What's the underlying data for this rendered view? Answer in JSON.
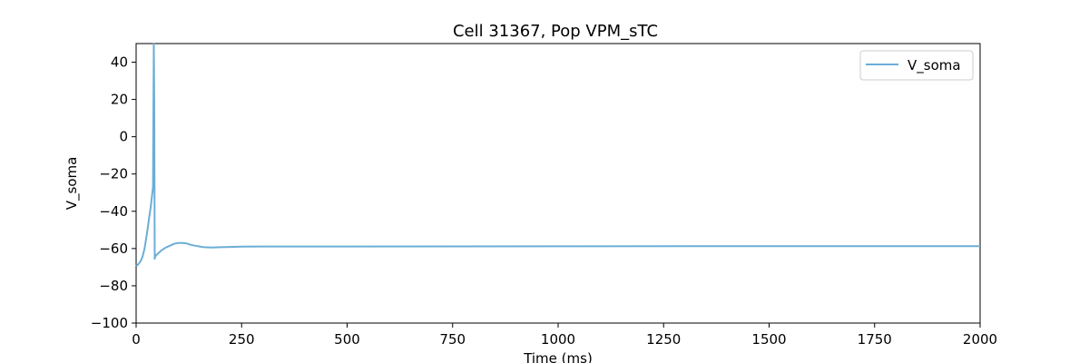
{
  "chart_data": {
    "type": "line",
    "title": "Cell 31367, Pop VPM_sTC",
    "xlabel": "Time (ms)",
    "ylabel": "V_soma",
    "xlim": [
      0,
      2000
    ],
    "ylim": [
      -100,
      50
    ],
    "xticks": [
      0,
      250,
      500,
      750,
      1000,
      1250,
      1500,
      1750,
      2000
    ],
    "yticks": [
      -100,
      -80,
      -60,
      -40,
      -20,
      0,
      20,
      40
    ],
    "grid": false,
    "legend_position": "top-right",
    "series": [
      {
        "name": "V_soma",
        "color": "#6baed6",
        "x": [
          0,
          5,
          10,
          15,
          20,
          25,
          30,
          35,
          40,
          42,
          43,
          44,
          45,
          46,
          47,
          48,
          50,
          55,
          60,
          70,
          80,
          90,
          100,
          110,
          120,
          130,
          140,
          160,
          180,
          200,
          250,
          300,
          500,
          1000,
          1500,
          2000
        ],
        "values": [
          -69.5,
          -68.5,
          -67,
          -64.5,
          -60,
          -53,
          -45,
          -37,
          -27,
          50,
          15,
          -65.5,
          -64.5,
          -64,
          -63.8,
          -63.5,
          -63,
          -62,
          -61,
          -59.5,
          -58.5,
          -57.5,
          -57,
          -57,
          -57.3,
          -58,
          -58.5,
          -59.3,
          -59.5,
          -59.3,
          -59,
          -58.9,
          -58.9,
          -58.8,
          -58.7,
          -58.7
        ]
      }
    ]
  }
}
